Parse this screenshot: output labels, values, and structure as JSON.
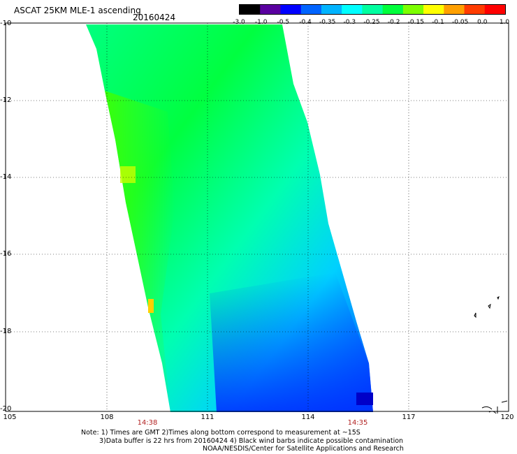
{
  "header": {
    "title": "ASCAT 25KM MLE-1 ascending",
    "date": "20160424"
  },
  "colorbar": {
    "labels": [
      "-3.0",
      "-1.0",
      "-0.5",
      "-0.4",
      "-0.35",
      "-0.3",
      "-0.25",
      "-0.2",
      "-0.15",
      "-0.1",
      "-0.05",
      "0.0",
      "1.0"
    ],
    "colors": [
      "#000000",
      "#5a00a0",
      "#0000ff",
      "#0064ff",
      "#00b4ff",
      "#00ffff",
      "#00ffa0",
      "#00ff3c",
      "#7dff00",
      "#ffff00",
      "#ffa000",
      "#ff3c00",
      "#ff0000"
    ]
  },
  "map": {
    "lat_labels": [
      "-10",
      "-12",
      "-14",
      "-16",
      "-18",
      "-20"
    ],
    "lon_labels": [
      "105",
      "108",
      "111",
      "114",
      "117",
      "120"
    ],
    "time_labels": [
      "14:38",
      "14:35"
    ],
    "time_color": "#b22222"
  },
  "notes": {
    "line1": "Note: 1) Times are GMT 2)Times along bottom correspond to measurement at ~15S",
    "line2": "3)Data buffer is 22 hrs from 20160424 4) Black wind barbs indicate possible contamination",
    "line3": "NOAA/NESDIS/Center for Satellite Applications and Research"
  }
}
